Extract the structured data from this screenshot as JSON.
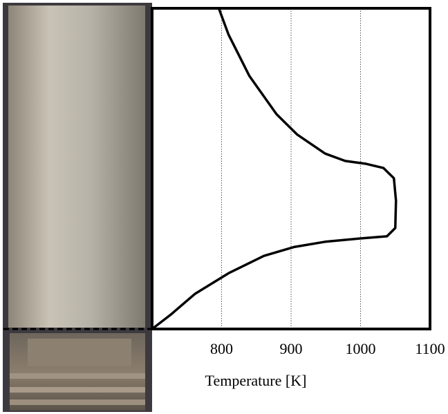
{
  "chart_data": {
    "type": "line",
    "xlabel": "Temperature [K]",
    "xlim": [
      700,
      1100
    ],
    "xticks": [
      800,
      900,
      1000,
      1100
    ],
    "ylim": [
      0,
      100
    ],
    "grid": true,
    "series": [
      {
        "color": "#000000",
        "x": [
          796,
          810,
          840,
          879,
          909,
          949,
          978,
          1008,
          1033,
          1048,
          1051,
          1050,
          1038,
          998,
          949,
          905,
          861,
          811,
          762,
          727,
          700
        ],
        "values": [
          100,
          91.8,
          78.9,
          67,
          60.6,
          54.7,
          52.4,
          51.5,
          50.2,
          47,
          40,
          31.5,
          28.9,
          28.2,
          27.2,
          25.6,
          22.8,
          17.5,
          11,
          4.5,
          0
        ]
      }
    ]
  }
}
